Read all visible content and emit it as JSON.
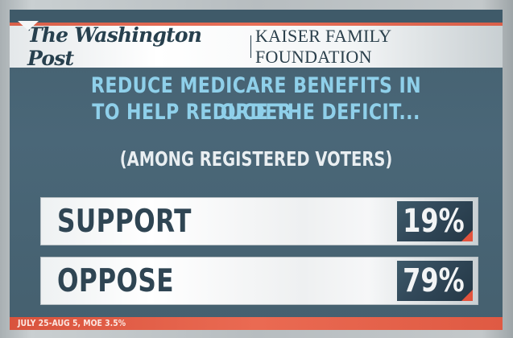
{
  "header": {
    "publisher": "The Washington Post",
    "partner": "KAISER FAMILY FOUNDATION"
  },
  "title": {
    "line1": "REDUCE MEDICARE BENEFITS IN ORDER",
    "line2": "TO HELP REDUCE THE DEFICIT..."
  },
  "subtitle": "(AMONG REGISTERED VOTERS)",
  "rows": [
    {
      "label": "SUPPORT",
      "value": "19%"
    },
    {
      "label": "OPPOSE",
      "value": "79%"
    }
  ],
  "footer": "JULY 25-AUG 5, MOE 3.5%",
  "colors": {
    "panel": "#4a6778",
    "title": "#8fd0ea",
    "accent_red": "#e2533d",
    "label": "#2f4553"
  },
  "chart_data": {
    "type": "table",
    "title": "Reduce Medicare benefits in order to help reduce the deficit...",
    "subtitle": "(Among registered voters)",
    "categories": [
      "Support",
      "Oppose"
    ],
    "values": [
      19,
      79
    ],
    "unit": "%",
    "source": "The Washington Post | Kaiser Family Foundation",
    "note": "July 25-Aug 5, MOE 3.5%"
  }
}
